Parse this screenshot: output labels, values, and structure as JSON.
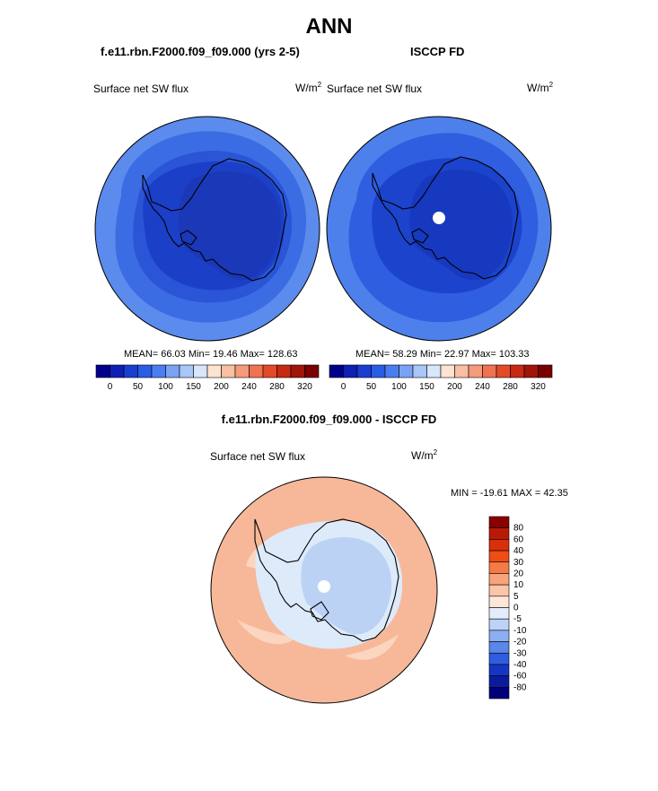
{
  "title": "ANN",
  "panels": [
    {
      "case": "f.e11.rbn.F2000.f09_f09.000 (yrs 2-5)",
      "variable": "Surface net SW flux",
      "units_base": "W/m",
      "units_exp": "2",
      "stats": "MEAN=  66.03  Min=  19.46  Max= 128.63"
    },
    {
      "case": "ISCCP FD",
      "variable": "Surface net SW flux",
      "units_base": "W/m",
      "units_exp": "2",
      "stats": "MEAN=  58.29  Min=  22.97  Max= 103.33"
    }
  ],
  "abs_colorbar": {
    "labels": [
      "0",
      "50",
      "100",
      "150",
      "200",
      "240",
      "280",
      "320"
    ],
    "colors": [
      "#00008c",
      "#0d1fb4",
      "#1a3ed2",
      "#2a5de6",
      "#4a7ef0",
      "#7aa2f4",
      "#a9c6f8",
      "#d8e6fb",
      "#fde3d2",
      "#f9bfa2",
      "#f59a7a",
      "#ef7350",
      "#e34a28",
      "#c62a12",
      "#a0140a",
      "#7a0000"
    ]
  },
  "diff": {
    "title": "f.e11.rbn.F2000.f09_f09.000 - ISCCP FD",
    "variable": "Surface net SW flux",
    "units_base": "W/m",
    "units_exp": "2",
    "minmax": "MIN = -19.61 MAX =  42.35",
    "colorbar_labels": [
      "80",
      "60",
      "40",
      "30",
      "20",
      "10",
      "5",
      "0",
      "-5",
      "-10",
      "-20",
      "-30",
      "-40",
      "-60",
      "-80"
    ],
    "colorbar_colors": [
      "#8b0000",
      "#b81a06",
      "#d8300a",
      "#ef4c16",
      "#f67a46",
      "#f9a37a",
      "#fbc6a8",
      "#fde6d8",
      "#e4ecfb",
      "#bcd2f7",
      "#8caef2",
      "#5b86ea",
      "#2f5de0",
      "#1536c4",
      "#0a1c9c",
      "#00007a"
    ]
  },
  "map_colors": {
    "model_ocean_outer": "#5b8bec",
    "model_ocean_mid": "#3c6ce4",
    "model_ocean_inner": "#2a55d6",
    "model_ice": "#1c3fc8",
    "model_interior": "#1a38b8",
    "obs_ocean_outer": "#4d80ea",
    "obs_ocean_mid": "#2f5ee0",
    "obs_ice": "#1c43cc",
    "obs_interior": "#1739c0",
    "diff_ocean": "#f7b899",
    "diff_ocean_light": "#fbd5c0",
    "diff_ice": "#ddeafa",
    "diff_interior": "#bcd2f5"
  }
}
